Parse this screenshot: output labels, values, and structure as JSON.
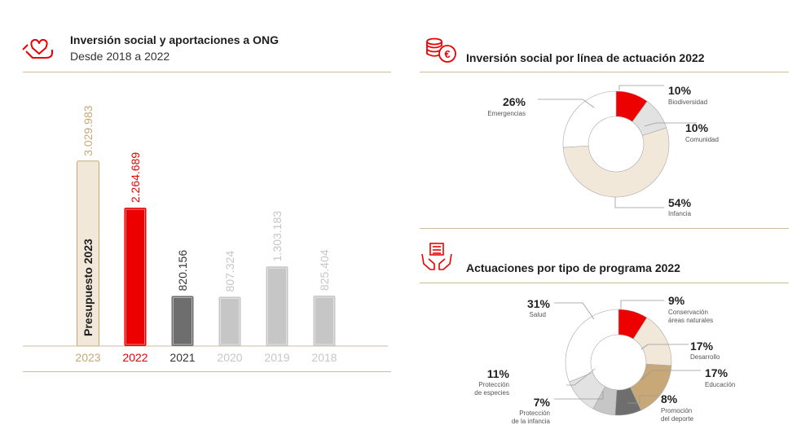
{
  "left_panel": {
    "title": "Inversión social y aportaciones a ONG",
    "subtitle": "Desde 2018 a 2022",
    "icon": "hand-heart-icon"
  },
  "right_top": {
    "title": "Inversión social por línea de actuación 2022",
    "icon": "coins-euro-icon"
  },
  "right_bottom": {
    "title": "Actuaciones por tipo de programa 2022",
    "icon": "hands-document-icon"
  },
  "colors": {
    "red": "#ec0000",
    "beige": "#f2e8da",
    "gold": "#c8a877",
    "dark_gray": "#6e6e6e",
    "light_gray": "#c6c6c6",
    "very_light_gray": "#e2e2e2",
    "rule": "#cdbd9a"
  },
  "chart_data": [
    {
      "type": "bar",
      "categories": [
        "2023",
        "2022",
        "2021",
        "2020",
        "2019",
        "2018"
      ],
      "values": [
        3029983,
        2264689,
        820156,
        807324,
        1303183,
        825404
      ],
      "value_labels": [
        "3.029.983",
        "2.264.689",
        "820.156",
        "807.324",
        "1.303.183",
        "825.404"
      ],
      "inner_label": "Presupuesto 2023",
      "colors": [
        "#f2e8da",
        "#ec0000",
        "#6e6e6e",
        "#c6c6c6",
        "#c6c6c6",
        "#c6c6c6"
      ],
      "label_colors": [
        "#c8a877",
        "#ec0000",
        "#333333",
        "#c6c6c6",
        "#c6c6c6",
        "#c6c6c6"
      ],
      "ylim": [
        0,
        3200000
      ]
    },
    {
      "type": "pie",
      "labels": [
        "Biodiversidad",
        "Comunidad",
        "Infancia",
        "Emergencias"
      ],
      "values": [
        10,
        10,
        54,
        26
      ],
      "value_labels": [
        "10%",
        "10%",
        "54%",
        "26%"
      ],
      "colors": [
        "#ec0000",
        "#e2e2e2",
        "#f2e8da",
        "#ffffff"
      ]
    },
    {
      "type": "pie",
      "labels": [
        "Conservación áreas naturales",
        "Desarrollo",
        "Educación",
        "Promoción del deporte",
        "Protección de la infancia",
        "Protección de especies",
        "Salud"
      ],
      "values": [
        9,
        17,
        17,
        8,
        7,
        11,
        31
      ],
      "value_labels": [
        "9%",
        "17%",
        "17%",
        "8%",
        "7%",
        "11%",
        "31%"
      ],
      "colors": [
        "#ec0000",
        "#f2e8da",
        "#c8a877",
        "#6e6e6e",
        "#c6c6c6",
        "#e2e2e2",
        "#ffffff"
      ]
    }
  ],
  "donut1_labels": {
    "biodiversidad": {
      "pct": "10%",
      "name": "Biodiversidad"
    },
    "comunidad": {
      "pct": "10%",
      "name": "Comunidad"
    },
    "infancia": {
      "pct": "54%",
      "name": "Infancia"
    },
    "emergencias": {
      "pct": "26%",
      "name": "Emergencias"
    }
  },
  "donut2_labels": {
    "salud": {
      "pct": "31%",
      "name": "Salud"
    },
    "conservacion": {
      "pct": "9%",
      "name1": "Conservación",
      "name2": "áreas naturales"
    },
    "desarrollo": {
      "pct": "17%",
      "name": "Desarrollo"
    },
    "educacion": {
      "pct": "17%",
      "name": "Educación"
    },
    "deporte": {
      "pct": "8%",
      "name1": "Promoción",
      "name2": "del deporte"
    },
    "infancia": {
      "pct": "7%",
      "name1": "Protección",
      "name2": "de la infancia"
    },
    "especies": {
      "pct": "11%",
      "name1": "Protección",
      "name2": "de especies"
    }
  }
}
